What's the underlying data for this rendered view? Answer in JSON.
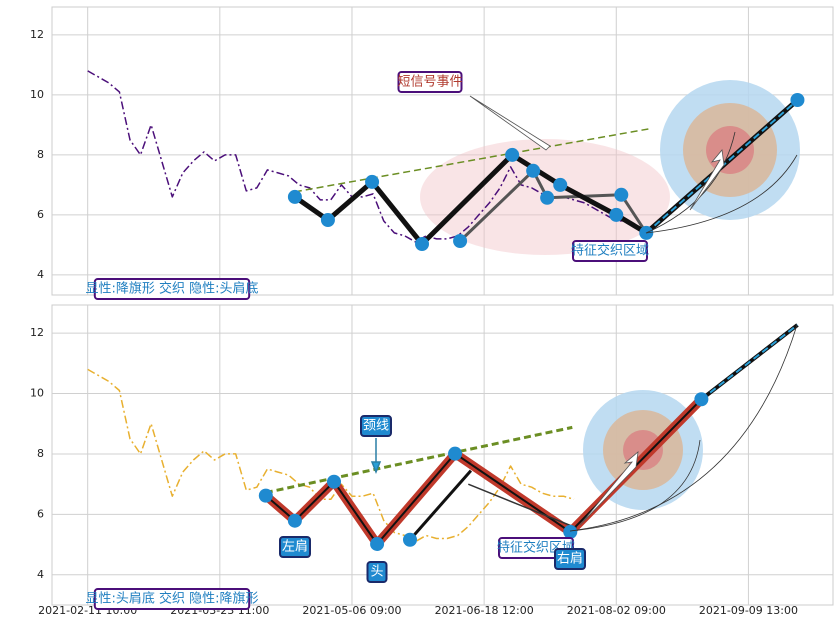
{
  "chart_data": [
    {
      "type": "line",
      "xlim": [
        -27,
        564
      ],
      "ylim": [
        3.33,
        12.93
      ],
      "yticks": [
        4,
        6,
        8,
        10,
        12
      ],
      "xticks": [
        0,
        100,
        200,
        300,
        400,
        500
      ],
      "grid": true,
      "label": "显性:降旗形 交织 隐性:头肩底",
      "annotations": [
        "短信号事件",
        "特征交织区域"
      ],
      "series": [
        {
          "color": "#4b0f7a",
          "linestyle": "dashdot",
          "linewidth": 1.5,
          "x": [
            0,
            8,
            16,
            24,
            32,
            40,
            48,
            56,
            64,
            72,
            80,
            88,
            96,
            104,
            112,
            120,
            128,
            136,
            144,
            152,
            160,
            168,
            176,
            184,
            192,
            200,
            208,
            216,
            224,
            232,
            240,
            248,
            256,
            264,
            272,
            280,
            288,
            296,
            304,
            312,
            320,
            328,
            336,
            344,
            352,
            360,
            368,
            376,
            384,
            392,
            400,
            408,
            416,
            424
          ],
          "values": [
            10.8,
            10.6,
            10.4,
            10.1,
            8.5,
            8.0,
            9.0,
            7.8,
            6.6,
            7.4,
            7.8,
            8.1,
            7.8,
            8.0,
            8.0,
            6.8,
            6.9,
            7.5,
            7.4,
            7.3,
            7.0,
            6.9,
            6.5,
            6.5,
            7.0,
            6.6,
            6.6,
            6.7,
            5.8,
            5.4,
            5.3,
            5.1,
            5.3,
            5.2,
            5.2,
            5.3,
            5.6,
            6.0,
            6.4,
            6.9,
            7.6,
            7.0,
            6.9,
            6.7,
            6.6,
            6.6,
            6.5,
            6.4,
            6.2,
            6.0,
            5.8,
            5.8,
            5.6,
            5.4
          ]
        },
        {
          "color": "#6b8e23",
          "linestyle": "dashed",
          "linewidth": 1.5,
          "x": [
            156.8,
            425
          ],
          "values": [
            6.77,
            8.87
          ]
        },
        {
          "color": "#555555",
          "linestyle": "solid",
          "linewidth": 3,
          "x": [
            281.8,
            337.1,
            347.7,
            403.8,
            422.7
          ],
          "values": [
            5.13,
            7.47,
            6.57,
            6.67,
            5.4
          ]
        },
        {
          "color": "#111111",
          "linestyle": "solid",
          "linewidth": 5,
          "x": [
            156.8,
            181.8,
            215.2,
            253,
            321.2,
            357.6,
            400,
            422.7
          ],
          "values": [
            6.6,
            5.83,
            7.1,
            5.03,
            8.0,
            7.0,
            6.0,
            5.4
          ]
        },
        {
          "color": "#111111",
          "linestyle": "solid",
          "linewidth": 5,
          "x": [
            422.7,
            537.1
          ],
          "values": [
            5.4,
            9.83
          ]
        },
        {
          "color": "#2a9fd6",
          "linestyle": "dashed",
          "linewidth": 2,
          "x": [
            422.7,
            537.1
          ],
          "values": [
            5.4,
            9.83
          ]
        },
        {
          "color": "#1f8ad0",
          "linestyle": "none",
          "marker": "o",
          "x": [
            156.8,
            181.8,
            215.2,
            253,
            281.8,
            321.2,
            337.1,
            347.7,
            357.6,
            400,
            403.8,
            422.7,
            537.1
          ],
          "values": [
            6.6,
            5.83,
            7.1,
            5.03,
            5.13,
            8.0,
            7.47,
            6.57,
            7.0,
            6.0,
            6.67,
            5.4,
            9.83
          ]
        }
      ]
    },
    {
      "type": "line",
      "xlim": [
        -27,
        564
      ],
      "ylim": [
        3.0,
        12.93
      ],
      "yticks": [
        4,
        6,
        8,
        10,
        12
      ],
      "xticks": [
        {
          "value": 0,
          "label": "2021-02-11 10:00"
        },
        {
          "value": 100,
          "label": "2021-03-23 11:00"
        },
        {
          "value": 200,
          "label": "2021-05-06 09:00"
        },
        {
          "value": 300,
          "label": "2021-06-18 12:00"
        },
        {
          "value": 400,
          "label": "2021-08-02 09:00"
        },
        {
          "value": 500,
          "label": "2021-09-09 13:00"
        }
      ],
      "grid": true,
      "label": "显性:头肩底 交织 隐性:降旗形",
      "annotations": [
        "颈线",
        "左肩",
        "头",
        "右肩",
        "特征交织区域"
      ],
      "series": [
        {
          "color": "#e8b030",
          "linestyle": "dashdot",
          "linewidth": 1.5,
          "x": [
            0,
            8,
            16,
            24,
            32,
            40,
            48,
            56,
            64,
            72,
            80,
            88,
            96,
            104,
            112,
            120,
            128,
            136,
            144,
            152,
            160,
            168,
            176,
            184,
            192,
            200,
            208,
            216,
            224,
            232,
            240,
            248,
            256,
            264,
            272,
            280,
            288,
            296,
            304,
            312,
            320,
            328,
            336,
            344,
            352,
            360,
            368
          ],
          "values": [
            10.8,
            10.6,
            10.4,
            10.1,
            8.5,
            8.0,
            9.0,
            7.8,
            6.6,
            7.4,
            7.8,
            8.1,
            7.8,
            8.0,
            8.0,
            6.8,
            6.9,
            7.5,
            7.4,
            7.3,
            7.0,
            6.9,
            6.5,
            6.5,
            7.0,
            6.6,
            6.6,
            6.7,
            5.8,
            5.4,
            5.3,
            5.1,
            5.3,
            5.2,
            5.2,
            5.3,
            5.6,
            6.0,
            6.4,
            6.9,
            7.6,
            7.0,
            6.9,
            6.7,
            6.6,
            6.6,
            6.5
          ]
        },
        {
          "color": "#6b8e23",
          "linestyle": "dashed",
          "linewidth": 3,
          "x": [
            134.8,
            366.7
          ],
          "values": [
            6.72,
            8.88
          ]
        },
        {
          "color": "#c0392b",
          "center_color": "#111111",
          "linestyle": "solid",
          "linewidth": 9,
          "x": [
            134.8,
            156.8,
            186.4,
            219,
            278,
            365.2,
            464.4
          ],
          "values": [
            6.62,
            5.79,
            7.08,
            5.02,
            8.01,
            5.42,
            9.81
          ]
        },
        {
          "color": "#111111",
          "linestyle": "solid",
          "linewidth": 3,
          "x": [
            243.9,
            290
          ],
          "values": [
            5.16,
            7.45
          ]
        },
        {
          "color": "#333333",
          "linestyle": "solid",
          "linewidth": 1.5,
          "x": [
            288,
            370
          ],
          "values": [
            7.0,
            5.55
          ]
        },
        {
          "color": "#111111",
          "linestyle": "solid",
          "linewidth": 4,
          "x": [
            464.4,
            537.1
          ],
          "values": [
            9.81,
            12.27
          ]
        },
        {
          "color": "#2a9fd6",
          "linestyle": "dashed",
          "linewidth": 2,
          "x": [
            464.4,
            537.1
          ],
          "values": [
            9.81,
            12.27
          ]
        },
        {
          "color": "#1f8ad0",
          "linestyle": "none",
          "marker": "o",
          "x": [
            134.8,
            156.8,
            186.4,
            219,
            243.9,
            278,
            365.2,
            464.4
          ],
          "values": [
            6.62,
            5.79,
            7.08,
            5.02,
            5.16,
            8.01,
            5.42,
            9.81
          ]
        }
      ]
    }
  ]
}
